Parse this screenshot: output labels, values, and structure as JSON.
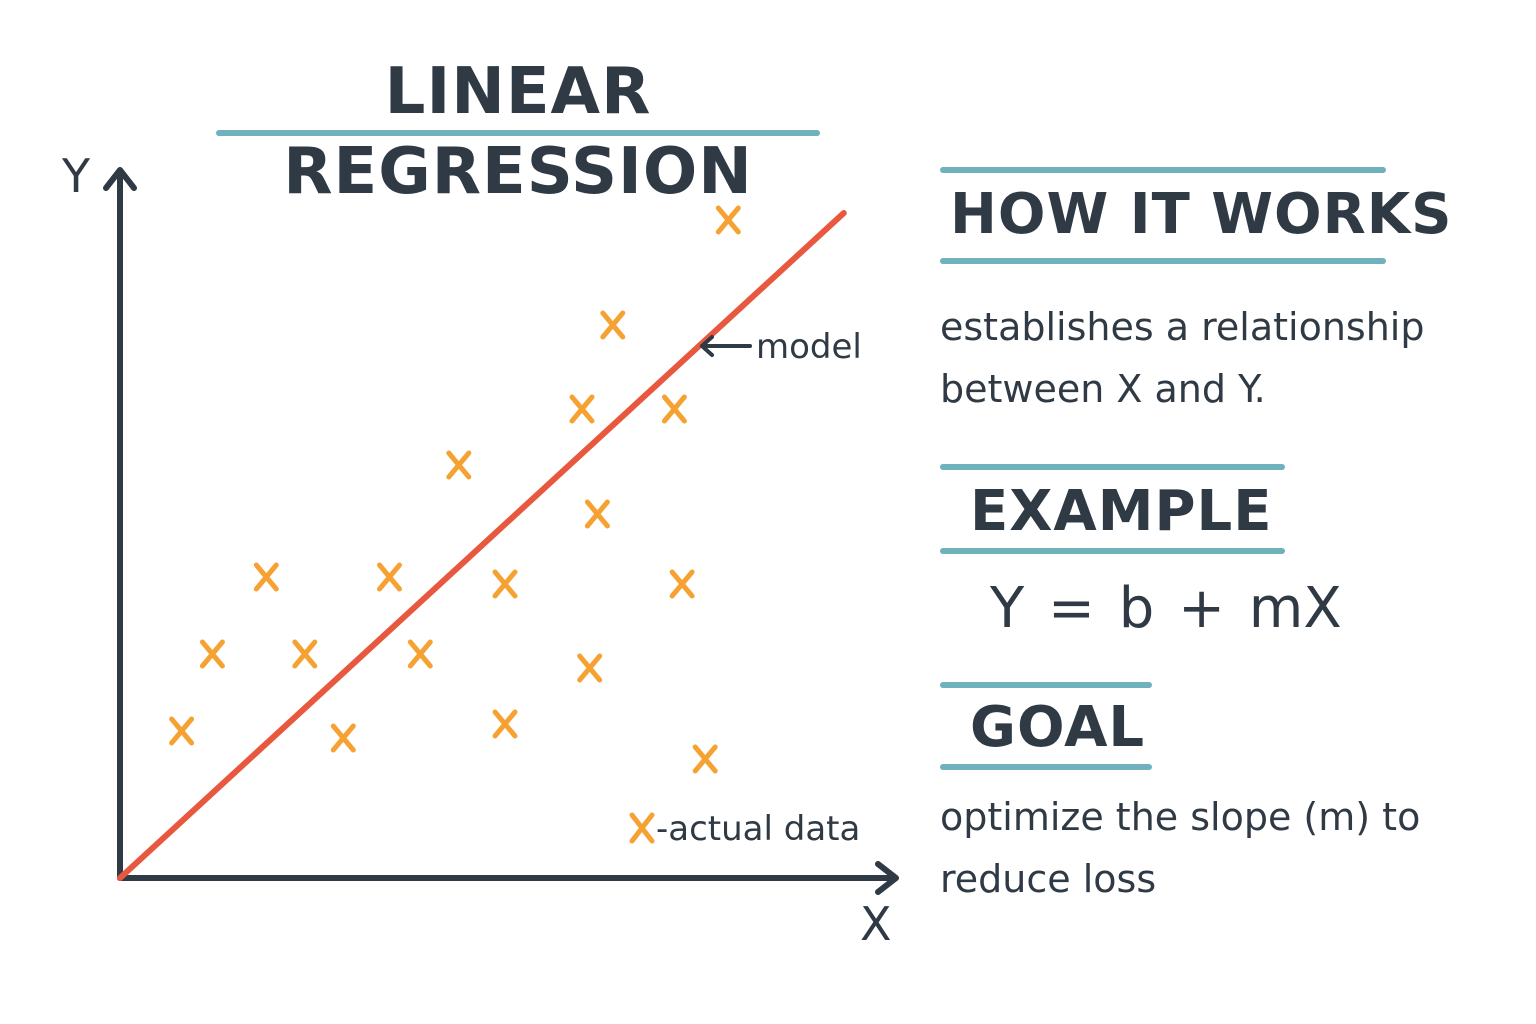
{
  "title": "LINEAR REGRESSION",
  "chart_data": {
    "type": "scatter",
    "xlabel": "X",
    "ylabel": "Y",
    "xlim": [
      0,
      10
    ],
    "ylim": [
      0,
      10
    ],
    "grid": false,
    "points": [
      {
        "x": 0.8,
        "y": 2.1
      },
      {
        "x": 1.2,
        "y": 3.2
      },
      {
        "x": 1.9,
        "y": 4.3
      },
      {
        "x": 2.4,
        "y": 3.2
      },
      {
        "x": 2.9,
        "y": 2.0
      },
      {
        "x": 3.5,
        "y": 4.3
      },
      {
        "x": 3.9,
        "y": 3.2
      },
      {
        "x": 4.4,
        "y": 5.9
      },
      {
        "x": 5.0,
        "y": 4.2
      },
      {
        "x": 5.0,
        "y": 2.2
      },
      {
        "x": 6.0,
        "y": 6.7
      },
      {
        "x": 6.1,
        "y": 3.0
      },
      {
        "x": 6.2,
        "y": 5.2
      },
      {
        "x": 6.4,
        "y": 7.9
      },
      {
        "x": 7.2,
        "y": 6.7
      },
      {
        "x": 7.3,
        "y": 4.2
      },
      {
        "x": 7.6,
        "y": 1.7
      },
      {
        "x": 7.9,
        "y": 9.4
      }
    ],
    "model_line": {
      "x": [
        0,
        9.4
      ],
      "y": [
        0,
        9.5
      ]
    },
    "annotations": {
      "model": "model",
      "legend": "-actual data"
    },
    "colors": {
      "axis": "#2f3a45",
      "line": "#e8583f",
      "points": "#f5a233"
    }
  },
  "sections": [
    {
      "heading": "HOW IT WORKS",
      "text": "establishes a relationship between X and Y."
    },
    {
      "heading": "EXAMPLE",
      "formula": "Y = b + mX"
    },
    {
      "heading": "GOAL",
      "text": "optimize the slope (m) to reduce loss"
    }
  ],
  "colors": {
    "rule": "#6fb1bc",
    "text": "#2f3a45"
  },
  "icons": [
    "arrow-left-icon",
    "x-marker-icon"
  ]
}
